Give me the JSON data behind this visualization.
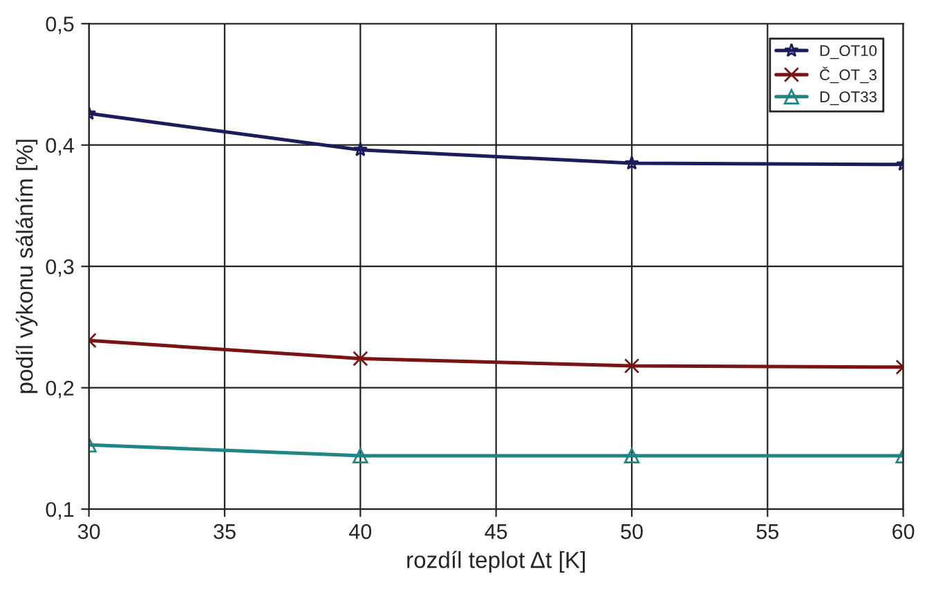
{
  "chart_data": {
    "type": "line",
    "xlabel": "rozdíl teplot Δt [K]",
    "ylabel": "podíl výkonu sáláním [%]",
    "x": [
      30,
      40,
      50,
      60
    ],
    "series": [
      {
        "name": "D_OT10",
        "color": "#1c1c5c",
        "values": [
          0.426,
          0.396,
          0.385,
          0.384
        ],
        "marker": "star"
      },
      {
        "name": "Č_OT_3",
        "color": "#7a1414",
        "values": [
          0.239,
          0.224,
          0.218,
          0.217
        ],
        "marker": "cross"
      },
      {
        "name": "D_OT33",
        "color": "#1f8585",
        "values": [
          0.153,
          0.144,
          0.144,
          0.144
        ],
        "marker": "triangle"
      }
    ],
    "xlim": [
      30,
      60
    ],
    "xticks": [
      30,
      35,
      40,
      45,
      50,
      55,
      60
    ],
    "ylim": [
      0.1,
      0.5
    ],
    "yticks": [
      {
        "value": 0.1,
        "label": "0,1"
      },
      {
        "value": 0.2,
        "label": "0,2"
      },
      {
        "value": 0.3,
        "label": "0,3"
      },
      {
        "value": 0.4,
        "label": "0,4"
      },
      {
        "value": 0.5,
        "label": "0,5"
      }
    ],
    "grid": true,
    "legend": "top right",
    "line_style": "solid"
  }
}
